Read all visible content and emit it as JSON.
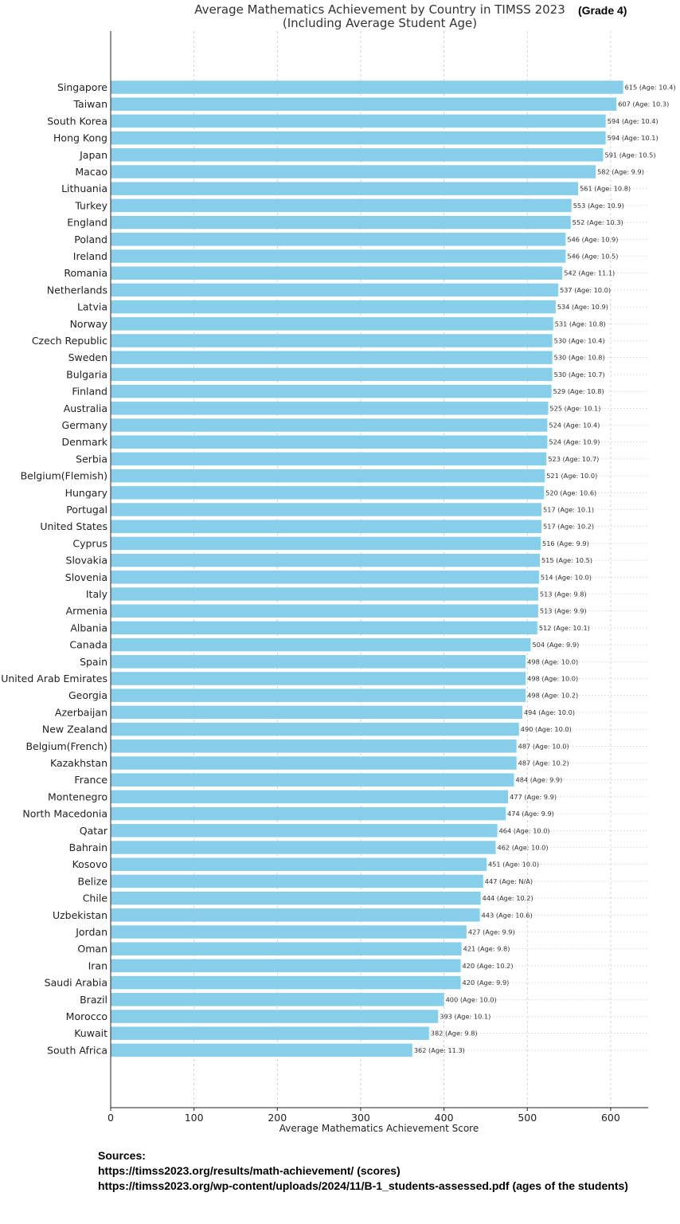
{
  "chart_data": {
    "type": "bar",
    "orientation": "horizontal",
    "title": [
      "Average Mathematics Achievement by Country in TIMSS 2023",
      "(Including Average Student Age)"
    ],
    "grade_label": "(Grade 4)",
    "xlabel": "Average Mathematics Achievement Score",
    "ylabel": "",
    "xlim": [
      0,
      645
    ],
    "xticks": [
      0,
      100,
      200,
      300,
      400,
      500,
      600
    ],
    "grid": "x-axis dashed",
    "bar_color": "#87ceeb",
    "categories": [
      "Singapore",
      "Taiwan",
      "South Korea",
      "Hong Kong",
      "Japan",
      "Macao",
      "Lithuania",
      "Turkey",
      "England",
      "Poland",
      "Ireland",
      "Romania",
      "Netherlands",
      "Latvia",
      "Norway",
      "Czech Republic",
      "Sweden",
      "Bulgaria",
      "Finland",
      "Australia",
      "Germany",
      "Denmark",
      "Serbia",
      "Belgium(Flemish)",
      "Hungary",
      "Portugal",
      "United States",
      "Cyprus",
      "Slovakia",
      "Slovenia",
      "Italy",
      "Armenia",
      "Albania",
      "Canada",
      "Spain",
      "United Arab Emirates",
      "Georgia",
      "Azerbaijan",
      "New Zealand",
      "Belgium(French)",
      "Kazakhstan",
      "France",
      "Montenegro",
      "North Macedonia",
      "Qatar",
      "Bahrain",
      "Kosovo",
      "Belize",
      "Chile",
      "Uzbekistan",
      "Jordan",
      "Oman",
      "Iran",
      "Saudi Arabia",
      "Brazil",
      "Morocco",
      "Kuwait",
      "South Africa"
    ],
    "values": [
      615,
      607,
      594,
      594,
      591,
      582,
      561,
      553,
      552,
      546,
      546,
      542,
      537,
      534,
      531,
      530,
      530,
      530,
      529,
      525,
      524,
      524,
      523,
      521,
      520,
      517,
      517,
      516,
      515,
      514,
      513,
      513,
      512,
      504,
      498,
      498,
      498,
      494,
      490,
      487,
      487,
      484,
      477,
      474,
      464,
      462,
      451,
      447,
      444,
      443,
      427,
      421,
      420,
      420,
      400,
      393,
      382,
      362
    ],
    "data_labels": [
      "615 (Age: 10.4)",
      "607 (Age: 10.3)",
      "594 (Age: 10.4)",
      "594 (Age: 10.1)",
      "591 (Age: 10.5)",
      "582 (Age: 9.9)",
      "561 (Age: 10.8)",
      "553 (Age: 10.9)",
      "552 (Age: 10.3)",
      "546 (Age: 10.9)",
      "546 (Age: 10.5)",
      "542 (Age: 11.1)",
      "537 (Age: 10.0)",
      "534 (Age: 10.9)",
      "531 (Age: 10.8)",
      "530 (Age: 10.4)",
      "530 (Age: 10.8)",
      "530 (Age: 10.7)",
      "529 (Age: 10.8)",
      "525 (Age: 10.1)",
      "524 (Age: 10.4)",
      "524 (Age: 10.9)",
      "523 (Age: 10.7)",
      "521 (Age: 10.0)",
      "520 (Age: 10.6)",
      "517 (Age: 10.1)",
      "517 (Age: 10.2)",
      "516 (Age: 9.9)",
      "515 (Age: 10.5)",
      "514 (Age: 10.0)",
      "513 (Age: 9.8)",
      "513 (Age: 9.9)",
      "512 (Age: 10.1)",
      "504 (Age: 9.9)",
      "498 (Age: 10.0)",
      "498 (Age: 10.0)",
      "498 (Age: 10.2)",
      "494 (Age: 10.0)",
      "490 (Age: 10.0)",
      "487 (Age: 10.0)",
      "487 (Age: 10.2)",
      "484 (Age: 9.9)",
      "477 (Age: 9.9)",
      "474 (Age: 9.9)",
      "464 (Age: 10.0)",
      "462 (Age: 10.0)",
      "451 (Age: 10.0)",
      "447 (Age: N/A)",
      "444 (Age: 10.2)",
      "443 (Age: 10.6)",
      "427 (Age: 9.9)",
      "421 (Age: 9.8)",
      "420 (Age: 10.2)",
      "420 (Age: 9.9)",
      "400 (Age: 10.0)",
      "393 (Age: 10.1)",
      "382 (Age: 9.8)",
      "362 (Age: 11.3)"
    ]
  },
  "sources": {
    "heading": "Sources:",
    "line1": "https://timss2023.org/results/math-achievement/ (scores)",
    "line2": "https://timss2023.org/wp-content/uploads/2024/11/B-1_students-assessed.pdf (ages of the students)"
  }
}
